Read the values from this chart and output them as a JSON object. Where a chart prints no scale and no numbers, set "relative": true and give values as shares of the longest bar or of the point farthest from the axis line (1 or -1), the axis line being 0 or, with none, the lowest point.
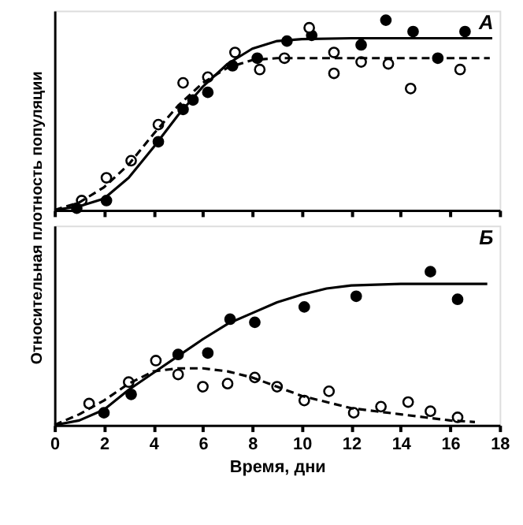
{
  "chart_data": [
    {
      "type": "scatter",
      "relative": true,
      "ylabel": "Относительная плотность популяции",
      "annotations": [
        "А"
      ],
      "xlim": [
        0,
        18
      ],
      "xticks": [
        0,
        2,
        4,
        6,
        8,
        10,
        12,
        14,
        16,
        18
      ],
      "tick_labels": false,
      "grid": false,
      "series": [
        {
          "marker": "circle",
          "color": "#000000",
          "x": [
            0.9,
            2.1,
            4.2,
            5.2,
            5.6,
            6.2,
            7.2,
            8.2,
            9.4,
            10.4,
            12.4,
            13.4,
            14.5,
            15.5,
            16.6
          ],
          "values": [
            0.01,
            0.05,
            0.36,
            0.53,
            0.58,
            0.62,
            0.76,
            0.8,
            0.89,
            0.92,
            0.87,
            1.0,
            0.94,
            0.8,
            0.94
          ]
        },
        {
          "marker": "circle",
          "color": "#ffffff",
          "x": [
            1.1,
            2.1,
            3.1,
            4.2,
            5.2,
            6.2,
            7.3,
            8.3,
            9.3,
            10.3,
            11.3,
            11.3,
            12.4,
            13.5,
            14.4,
            16.4
          ],
          "values": [
            0.05,
            0.17,
            0.26,
            0.45,
            0.67,
            0.7,
            0.83,
            0.74,
            0.8,
            0.96,
            0.83,
            0.72,
            0.78,
            0.77,
            0.64,
            0.74
          ]
        },
        {
          "type": "line",
          "marker": "none",
          "line_style": "solid",
          "color": "#000000",
          "x": [
            0,
            1,
            2,
            3,
            4,
            5,
            6,
            7,
            8,
            9,
            10,
            12,
            17.7
          ],
          "values": [
            0.0,
            0.02,
            0.06,
            0.17,
            0.33,
            0.5,
            0.65,
            0.77,
            0.85,
            0.89,
            0.9,
            0.905,
            0.905
          ]
        },
        {
          "type": "line",
          "marker": "none",
          "line_style": "dashed",
          "color": "#000000",
          "x": [
            0,
            1,
            2,
            3,
            4,
            5,
            6,
            7,
            8,
            9,
            17.6
          ],
          "values": [
            0.0,
            0.04,
            0.12,
            0.24,
            0.4,
            0.55,
            0.67,
            0.75,
            0.79,
            0.8,
            0.8
          ]
        }
      ]
    },
    {
      "type": "scatter",
      "relative": true,
      "xlabel": "Время, дни",
      "annotations": [
        "Б"
      ],
      "xlim": [
        0,
        18
      ],
      "xticks": [
        0,
        2,
        4,
        6,
        8,
        10,
        12,
        14,
        16,
        18
      ],
      "tick_labels": "x",
      "grid": false,
      "series": [
        {
          "marker": "circle",
          "color": "#000000",
          "x": [
            2.0,
            3.1,
            5.0,
            6.2,
            7.1,
            8.1,
            10.1,
            12.2,
            15.2,
            16.3
          ],
          "values": [
            0.08,
            0.2,
            0.46,
            0.47,
            0.69,
            0.67,
            0.77,
            0.84,
            1.0,
            0.82
          ]
        },
        {
          "marker": "circle",
          "color": "#ffffff",
          "x": [
            1.4,
            3.0,
            4.1,
            5.0,
            6.0,
            7.0,
            8.1,
            9.0,
            10.1,
            11.1,
            12.1,
            13.2,
            14.3,
            15.2,
            16.3
          ],
          "values": [
            0.14,
            0.28,
            0.42,
            0.33,
            0.25,
            0.27,
            0.31,
            0.25,
            0.16,
            0.22,
            0.08,
            0.12,
            0.15,
            0.09,
            0.05
          ]
        },
        {
          "type": "line",
          "marker": "none",
          "line_style": "solid",
          "color": "#000000",
          "x": [
            0,
            1,
            2,
            3,
            4,
            5,
            6,
            7,
            8,
            9,
            10,
            11,
            12,
            14,
            17.5
          ],
          "values": [
            0.0,
            0.03,
            0.1,
            0.23,
            0.34,
            0.45,
            0.56,
            0.66,
            0.73,
            0.8,
            0.85,
            0.89,
            0.91,
            0.92,
            0.92
          ]
        },
        {
          "type": "line",
          "marker": "none",
          "line_style": "dashed",
          "color": "#000000",
          "x": [
            0,
            1,
            2,
            3,
            4,
            5,
            6,
            7,
            8,
            9,
            10,
            11,
            12,
            13,
            14,
            15,
            16,
            17
          ],
          "values": [
            0.0,
            0.07,
            0.16,
            0.27,
            0.35,
            0.37,
            0.37,
            0.35,
            0.31,
            0.25,
            0.19,
            0.15,
            0.11,
            0.09,
            0.07,
            0.05,
            0.03,
            0.02
          ]
        }
      ]
    }
  ]
}
